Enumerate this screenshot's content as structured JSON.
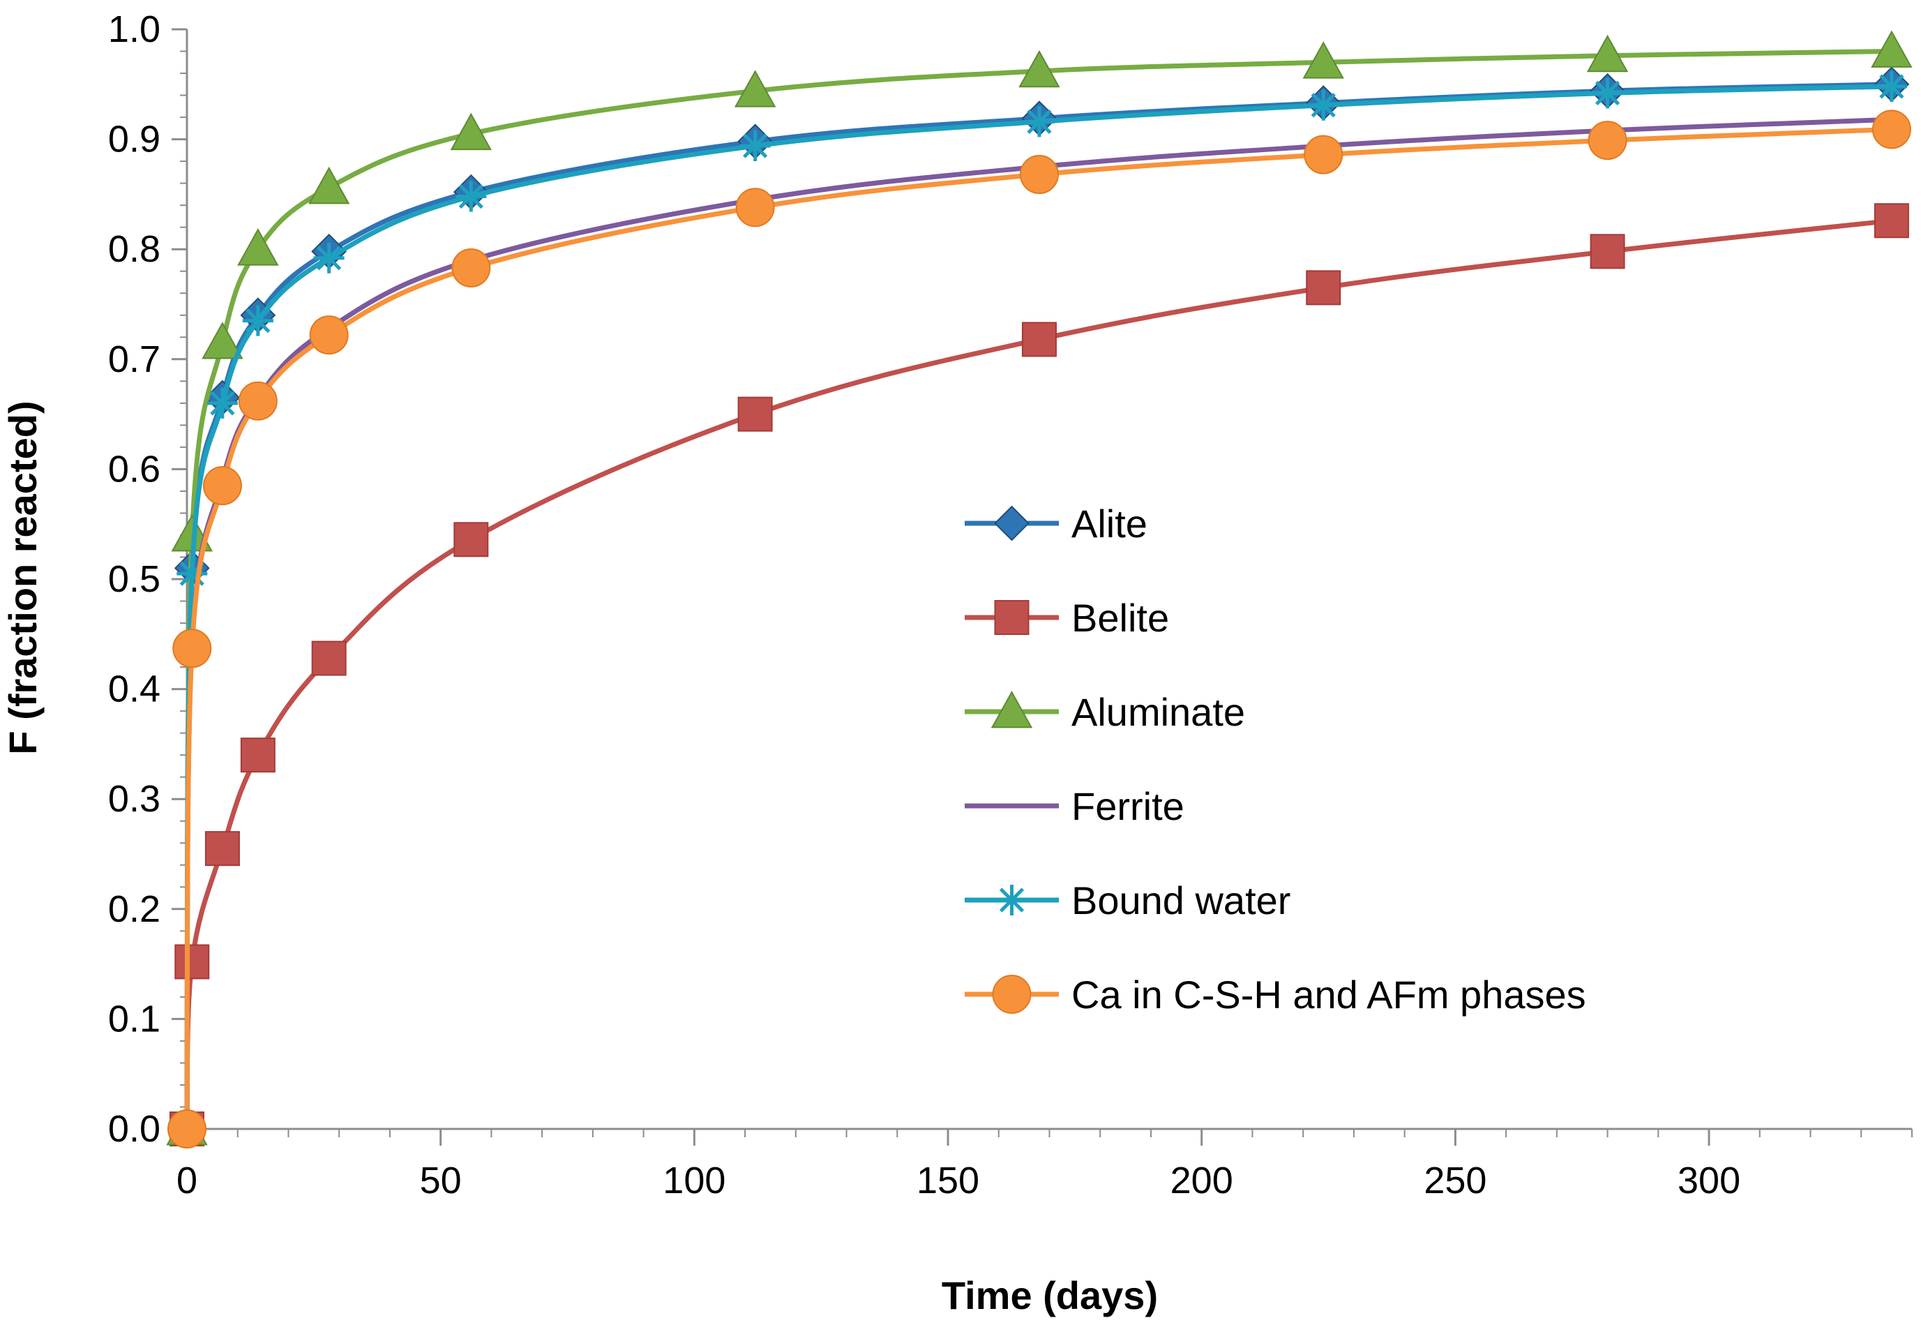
{
  "chart_data": {
    "type": "line",
    "xlabel": "Time (days)",
    "ylabel": "F (fraction reacted)",
    "xlim": [
      0,
      340
    ],
    "ylim": [
      0,
      1.0
    ],
    "x_ticks": [
      0,
      50,
      100,
      150,
      200,
      250,
      300
    ],
    "y_ticks": [
      0.0,
      0.1,
      0.2,
      0.3,
      0.4,
      0.5,
      0.6,
      0.7,
      0.8,
      0.9,
      1.0
    ],
    "y_tick_labels": [
      "0.0",
      "0.1",
      "0.2",
      "0.3",
      "0.4",
      "0.5",
      "0.6",
      "0.7",
      "0.8",
      "0.9",
      "1.0"
    ],
    "x_minor_step": 10,
    "y_minor_step": 0.02,
    "grid": false,
    "legend_position": "center-right",
    "x": [
      0,
      1,
      7,
      14,
      28,
      56,
      112,
      168,
      224,
      280,
      336
    ],
    "series": [
      {
        "name": "Alite",
        "color": "#2E75B6",
        "marker": "diamond",
        "values": [
          0,
          0.51,
          0.665,
          0.74,
          0.798,
          0.852,
          0.898,
          0.919,
          0.933,
          0.944,
          0.95
        ]
      },
      {
        "name": "Belite",
        "color": "#C0504D",
        "marker": "square",
        "values": [
          0,
          0.152,
          0.255,
          0.34,
          0.428,
          0.536,
          0.65,
          0.718,
          0.765,
          0.798,
          0.826
        ]
      },
      {
        "name": "Aluminate",
        "color": "#77AC42",
        "marker": "triangle",
        "values": [
          0,
          0.54,
          0.715,
          0.8,
          0.856,
          0.905,
          0.944,
          0.962,
          0.97,
          0.976,
          0.98
        ]
      },
      {
        "name": "Ferrite",
        "color": "#7D5A9E",
        "marker": "none",
        "values": [
          0,
          0.44,
          0.59,
          0.665,
          0.728,
          0.79,
          0.845,
          0.875,
          0.894,
          0.908,
          0.918
        ]
      },
      {
        "name": "Bound water",
        "color": "#1DA0BE",
        "marker": "asterisk",
        "values": [
          0,
          0.505,
          0.66,
          0.735,
          0.792,
          0.848,
          0.894,
          0.916,
          0.931,
          0.942,
          0.948
        ]
      },
      {
        "name": "Ca in C-S-H and AFm phases",
        "color": "#F7923A",
        "marker": "circle",
        "values": [
          0,
          0.437,
          0.585,
          0.662,
          0.722,
          0.783,
          0.838,
          0.868,
          0.886,
          0.899,
          0.909
        ]
      }
    ]
  }
}
